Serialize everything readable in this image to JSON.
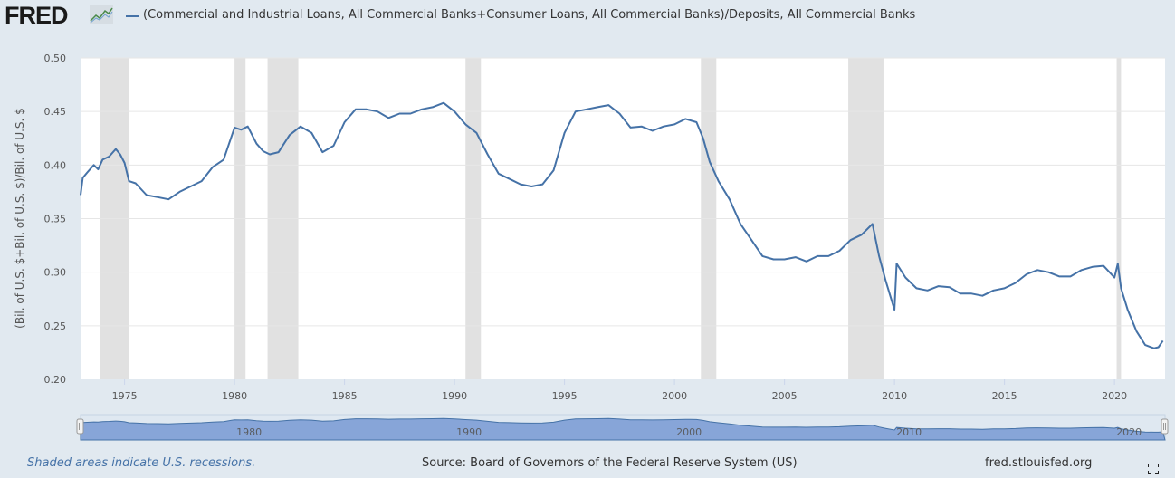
{
  "header": {
    "logo_text": "FRED",
    "legend_label": "(Commercial and Industrial Loans, All Commercial Banks+Consumer Loans, All Commercial Banks)/Deposits, All Commercial Banks"
  },
  "footer": {
    "recession_note": "Shaded areas indicate U.S. recessions.",
    "source": "Source: Board of Governors of the Federal Reserve System (US)",
    "site": "fred.stlouisfed.org"
  },
  "colors": {
    "series": "#4572a7",
    "recession": "#e1e1e1",
    "background": "#e1e9f0"
  },
  "chart_data": {
    "type": "line",
    "title": "(Commercial and Industrial Loans, All Commercial Banks+Consumer Loans, All Commercial Banks)/Deposits, All Commercial Banks",
    "xlabel": "",
    "ylabel": "(Bil. of U.S. $+Bil. of U.S. $)/Bil. of U.S. $",
    "xlim": [
      1973.0,
      2022.3
    ],
    "ylim": [
      0.2,
      0.5
    ],
    "yticks": [
      "0.20",
      "0.25",
      "0.30",
      "0.35",
      "0.40",
      "0.45",
      "0.50"
    ],
    "xticks": [
      "1975",
      "1980",
      "1985",
      "1990",
      "1995",
      "2000",
      "2005",
      "2010",
      "2015",
      "2020"
    ],
    "navigator_labels": [
      "1980",
      "1990",
      "2000",
      "2010",
      "2020"
    ],
    "recessions": [
      [
        1973.9,
        1975.2
      ],
      [
        1980.0,
        1980.5
      ],
      [
        1981.5,
        1982.9
      ],
      [
        1990.5,
        1991.2
      ],
      [
        2001.2,
        2001.9
      ],
      [
        2007.9,
        2009.5
      ],
      [
        2020.1,
        2020.3
      ]
    ],
    "series": [
      {
        "name": "(Commercial and Industrial Loans, All Commercial Banks+Consumer Loans, All Commercial Banks)/Deposits, All Commercial Banks",
        "x": [
          1973.0,
          1973.1,
          1973.3,
          1973.6,
          1973.8,
          1974.0,
          1974.3,
          1974.6,
          1974.8,
          1975.0,
          1975.2,
          1975.5,
          1976.0,
          1976.5,
          1977.0,
          1977.5,
          1978.0,
          1978.5,
          1979.0,
          1979.5,
          1980.0,
          1980.3,
          1980.6,
          1981.0,
          1981.3,
          1981.6,
          1982.0,
          1982.5,
          1983.0,
          1983.5,
          1984.0,
          1984.5,
          1985.0,
          1985.5,
          1986.0,
          1986.5,
          1987.0,
          1987.5,
          1988.0,
          1988.5,
          1989.0,
          1989.5,
          1990.0,
          1990.5,
          1991.0,
          1991.5,
          1992.0,
          1992.5,
          1993.0,
          1993.5,
          1994.0,
          1994.5,
          1995.0,
          1995.5,
          1996.0,
          1996.5,
          1997.0,
          1997.5,
          1998.0,
          1998.5,
          1999.0,
          1999.5,
          2000.0,
          2000.5,
          2001.0,
          2001.3,
          2001.6,
          2002.0,
          2002.5,
          2003.0,
          2003.5,
          2004.0,
          2004.5,
          2005.0,
          2005.5,
          2006.0,
          2006.5,
          2007.0,
          2007.5,
          2008.0,
          2008.5,
          2009.0,
          2009.3,
          2009.6,
          2010.0,
          2010.1,
          2010.5,
          2011.0,
          2011.5,
          2012.0,
          2012.5,
          2013.0,
          2013.5,
          2014.0,
          2014.5,
          2015.0,
          2015.5,
          2016.0,
          2016.5,
          2017.0,
          2017.5,
          2018.0,
          2018.5,
          2019.0,
          2019.5,
          2020.0,
          2020.15,
          2020.3,
          2020.6,
          2021.0,
          2021.4,
          2021.8,
          2022.0,
          2022.2
        ],
        "y": [
          0.372,
          0.388,
          0.393,
          0.4,
          0.396,
          0.405,
          0.408,
          0.415,
          0.41,
          0.402,
          0.385,
          0.383,
          0.372,
          0.37,
          0.368,
          0.375,
          0.38,
          0.385,
          0.398,
          0.405,
          0.435,
          0.433,
          0.436,
          0.42,
          0.413,
          0.41,
          0.412,
          0.428,
          0.436,
          0.43,
          0.412,
          0.418,
          0.44,
          0.452,
          0.452,
          0.45,
          0.444,
          0.448,
          0.448,
          0.452,
          0.454,
          0.458,
          0.45,
          0.438,
          0.43,
          0.41,
          0.392,
          0.387,
          0.382,
          0.38,
          0.382,
          0.395,
          0.43,
          0.45,
          0.452,
          0.454,
          0.456,
          0.448,
          0.435,
          0.436,
          0.432,
          0.436,
          0.438,
          0.443,
          0.44,
          0.425,
          0.403,
          0.385,
          0.368,
          0.345,
          0.33,
          0.315,
          0.312,
          0.312,
          0.314,
          0.31,
          0.315,
          0.315,
          0.32,
          0.33,
          0.335,
          0.345,
          0.315,
          0.292,
          0.265,
          0.308,
          0.295,
          0.285,
          0.283,
          0.287,
          0.286,
          0.28,
          0.28,
          0.278,
          0.283,
          0.285,
          0.29,
          0.298,
          0.302,
          0.3,
          0.296,
          0.296,
          0.302,
          0.305,
          0.306,
          0.295,
          0.308,
          0.285,
          0.265,
          0.245,
          0.232,
          0.229,
          0.23,
          0.236
        ]
      }
    ]
  }
}
